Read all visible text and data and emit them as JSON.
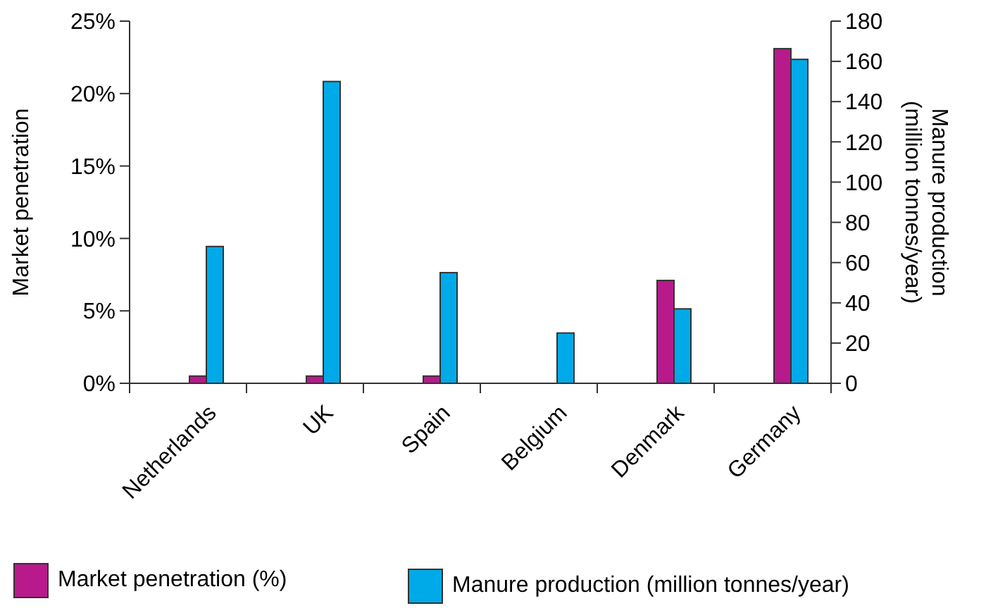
{
  "chart_data": {
    "type": "bar",
    "ylabel": "Market penetration",
    "y2label": "Manure production\n(million tonnes/year)",
    "categories": [
      "Netherlands",
      "UK",
      "Spain",
      "Belgium",
      "Denmark",
      "Germany"
    ],
    "series": [
      {
        "name": "Market penetration (%)",
        "color": "#b81a8c",
        "values": [
          0.5,
          0.5,
          0.5,
          null,
          7.1,
          23.1
        ]
      },
      {
        "name": "Manure production (million tonnes/year)",
        "color": "#00aae8",
        "axis": "y2",
        "values": [
          68,
          150,
          55,
          25,
          37,
          161
        ]
      }
    ],
    "ylim": [
      0,
      25
    ],
    "yticks": [
      {
        "value": 0,
        "label": "0%"
      },
      {
        "value": 5,
        "label": "5%"
      },
      {
        "value": 10,
        "label": "10%"
      },
      {
        "value": 15,
        "label": "15%"
      },
      {
        "value": 20,
        "label": "20%"
      },
      {
        "value": 25,
        "label": "25%"
      }
    ],
    "y2lim": [
      0,
      180
    ],
    "y2ticks": [
      0,
      20,
      40,
      60,
      80,
      100,
      120,
      140,
      160,
      180
    ],
    "legend": "bottom"
  }
}
